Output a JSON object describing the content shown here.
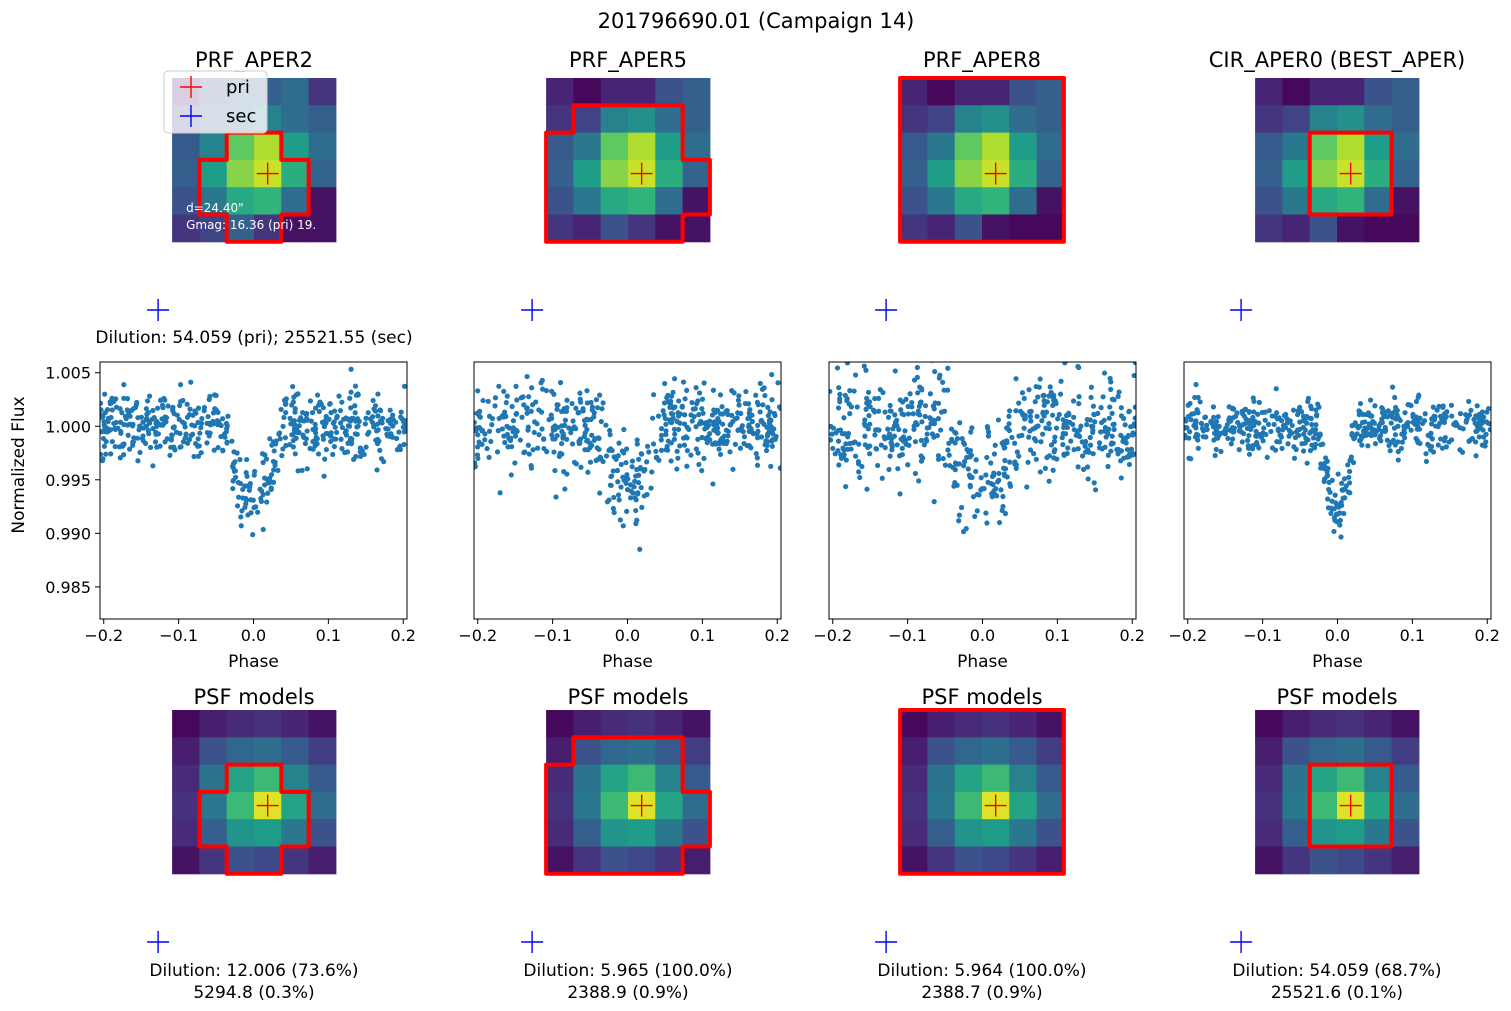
{
  "suptitle": "201796690.01 (Campaign 14)",
  "colors": {
    "aperture": "#ff0000",
    "primary_marker": "#ff0000",
    "secondary_marker": "#0000ff",
    "points": "#1f77b4",
    "colormap": "viridis"
  },
  "legend": {
    "placement": "top-left of first stamp",
    "entries": [
      {
        "label": "pri",
        "marker": "plus",
        "color": "#ff0000"
      },
      {
        "label": "sec",
        "marker": "plus",
        "color": "#0000ff"
      }
    ]
  },
  "annotation": {
    "d_text": "d=24.40\"",
    "gmag_text": "Gmag: 16.36 (pri) 19."
  },
  "dilution_top": "Dilution: 54.059 (pri); 25521.55 (sec)",
  "chart_data": {
    "type": "scatter",
    "xlabel": "Phase",
    "ylabel": "Normalized Flux",
    "xlim": [
      -0.205,
      0.205
    ],
    "ylim": [
      0.982,
      1.006
    ],
    "xticks": [
      -0.2,
      -0.1,
      0.0,
      0.1,
      0.2
    ],
    "xtick_labels": [
      "−0.2",
      "−0.1",
      "0.0",
      "0.1",
      "0.2"
    ],
    "yticks": [
      0.985,
      0.99,
      0.995,
      1.0,
      1.005
    ],
    "ytick_labels": [
      "0.985",
      "0.990",
      "0.995",
      "1.000",
      "1.005"
    ],
    "grid": false,
    "panels": [
      {
        "stamp_title": "PRF_APER2",
        "psf_title": "PSF models",
        "dilution_lines": [
          "Dilution: 12.006 (73.6%)",
          "5294.8 (0.3%)"
        ],
        "transit_depth": 0.0065,
        "transit_halfwidth": 0.04,
        "scatter": 0.0022,
        "stamp": [
          [
            0.05,
            0.25,
            0.3,
            0.3,
            0.35,
            0.15
          ],
          [
            0.2,
            0.3,
            0.35,
            0.45,
            0.35,
            0.3
          ],
          [
            0.28,
            0.45,
            0.75,
            0.88,
            0.55,
            0.35
          ],
          [
            0.3,
            0.55,
            0.82,
            0.92,
            0.62,
            0.32
          ],
          [
            0.25,
            0.4,
            0.6,
            0.65,
            0.35,
            0.05
          ],
          [
            0.15,
            0.2,
            0.3,
            0.15,
            0.05,
            0.05
          ]
        ],
        "psf": [
          [
            0.02,
            0.08,
            0.12,
            0.14,
            0.1,
            0.05
          ],
          [
            0.08,
            0.25,
            0.33,
            0.36,
            0.28,
            0.18
          ],
          [
            0.12,
            0.38,
            0.58,
            0.68,
            0.45,
            0.28
          ],
          [
            0.14,
            0.4,
            0.68,
            0.95,
            0.58,
            0.35
          ],
          [
            0.12,
            0.3,
            0.52,
            0.55,
            0.4,
            0.25
          ],
          [
            0.05,
            0.15,
            0.25,
            0.22,
            0.15,
            0.08
          ]
        ]
      },
      {
        "stamp_title": "PRF_APER5",
        "psf_title": "PSF models",
        "dilution_lines": [
          "Dilution: 5.965 (100.0%)",
          "2388.9 (0.9%)"
        ],
        "transit_depth": 0.0055,
        "transit_halfwidth": 0.045,
        "scatter": 0.0031,
        "stamp": [
          [
            0.1,
            0.02,
            0.1,
            0.1,
            0.25,
            0.3
          ],
          [
            0.15,
            0.2,
            0.45,
            0.5,
            0.35,
            0.3
          ],
          [
            0.28,
            0.4,
            0.75,
            0.88,
            0.55,
            0.35
          ],
          [
            0.3,
            0.55,
            0.82,
            0.92,
            0.62,
            0.32
          ],
          [
            0.25,
            0.4,
            0.6,
            0.65,
            0.35,
            0.05
          ],
          [
            0.15,
            0.1,
            0.25,
            0.15,
            0.05,
            0.05
          ]
        ],
        "psf": [
          [
            0.02,
            0.08,
            0.12,
            0.14,
            0.1,
            0.05
          ],
          [
            0.08,
            0.25,
            0.33,
            0.36,
            0.28,
            0.18
          ],
          [
            0.12,
            0.38,
            0.58,
            0.68,
            0.45,
            0.28
          ],
          [
            0.14,
            0.4,
            0.68,
            0.95,
            0.58,
            0.35
          ],
          [
            0.12,
            0.3,
            0.52,
            0.55,
            0.4,
            0.25
          ],
          [
            0.05,
            0.15,
            0.25,
            0.22,
            0.15,
            0.08
          ]
        ]
      },
      {
        "stamp_title": "PRF_APER8",
        "psf_title": "PSF models",
        "dilution_lines": [
          "Dilution: 5.964 (100.0%)",
          "2388.7 (0.9%)"
        ],
        "transit_depth": 0.005,
        "transit_halfwidth": 0.05,
        "scatter": 0.0034,
        "stamp": [
          [
            0.1,
            0.02,
            0.1,
            0.1,
            0.25,
            0.3
          ],
          [
            0.15,
            0.2,
            0.45,
            0.5,
            0.35,
            0.3
          ],
          [
            0.28,
            0.4,
            0.75,
            0.88,
            0.55,
            0.35
          ],
          [
            0.3,
            0.55,
            0.82,
            0.92,
            0.62,
            0.32
          ],
          [
            0.25,
            0.4,
            0.6,
            0.65,
            0.35,
            0.05
          ],
          [
            0.15,
            0.1,
            0.25,
            0.05,
            0.02,
            0.02
          ]
        ],
        "psf": [
          [
            0.02,
            0.08,
            0.12,
            0.14,
            0.1,
            0.05
          ],
          [
            0.08,
            0.25,
            0.33,
            0.36,
            0.28,
            0.18
          ],
          [
            0.12,
            0.38,
            0.58,
            0.68,
            0.45,
            0.28
          ],
          [
            0.14,
            0.4,
            0.68,
            0.95,
            0.58,
            0.35
          ],
          [
            0.12,
            0.3,
            0.52,
            0.55,
            0.4,
            0.25
          ],
          [
            0.05,
            0.15,
            0.25,
            0.22,
            0.15,
            0.08
          ]
        ]
      },
      {
        "stamp_title": "CIR_APER0 (BEST_APER)",
        "psf_title": "PSF models",
        "dilution_lines": [
          "Dilution: 54.059 (68.7%)",
          "25521.6 (0.1%)"
        ],
        "transit_depth": 0.0075,
        "transit_halfwidth": 0.025,
        "scatter": 0.0018,
        "stamp": [
          [
            0.1,
            0.02,
            0.1,
            0.1,
            0.25,
            0.3
          ],
          [
            0.15,
            0.2,
            0.45,
            0.5,
            0.35,
            0.3
          ],
          [
            0.28,
            0.4,
            0.75,
            0.88,
            0.55,
            0.35
          ],
          [
            0.3,
            0.55,
            0.82,
            0.92,
            0.62,
            0.32
          ],
          [
            0.25,
            0.4,
            0.6,
            0.65,
            0.35,
            0.05
          ],
          [
            0.15,
            0.1,
            0.25,
            0.05,
            0.02,
            0.02
          ]
        ],
        "psf": [
          [
            0.02,
            0.08,
            0.12,
            0.14,
            0.1,
            0.05
          ],
          [
            0.08,
            0.25,
            0.33,
            0.36,
            0.28,
            0.18
          ],
          [
            0.12,
            0.38,
            0.58,
            0.68,
            0.45,
            0.28
          ],
          [
            0.14,
            0.4,
            0.68,
            0.95,
            0.58,
            0.35
          ],
          [
            0.12,
            0.3,
            0.52,
            0.55,
            0.4,
            0.25
          ],
          [
            0.05,
            0.15,
            0.25,
            0.22,
            0.15,
            0.08
          ]
        ]
      }
    ]
  }
}
